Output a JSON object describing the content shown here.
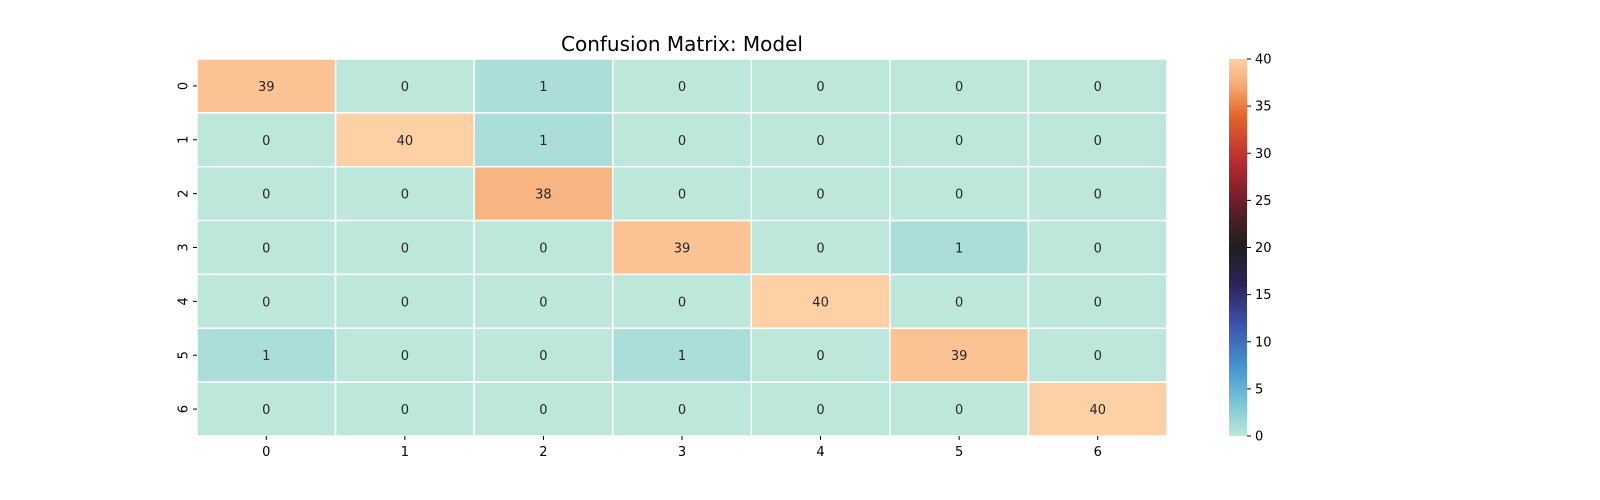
{
  "chart_data": {
    "type": "heatmap",
    "title": "Confusion Matrix: Model",
    "xlabel": "",
    "ylabel": "",
    "row_labels": [
      "0",
      "1",
      "2",
      "3",
      "4",
      "5",
      "6"
    ],
    "col_labels": [
      "0",
      "1",
      "2",
      "3",
      "4",
      "5",
      "6"
    ],
    "values": [
      [
        39,
        0,
        1,
        0,
        0,
        0,
        0
      ],
      [
        0,
        40,
        1,
        0,
        0,
        0,
        0
      ],
      [
        0,
        0,
        38,
        0,
        0,
        0,
        0
      ],
      [
        0,
        0,
        0,
        39,
        0,
        1,
        0
      ],
      [
        0,
        0,
        0,
        0,
        40,
        0,
        0
      ],
      [
        1,
        0,
        0,
        1,
        0,
        39,
        0
      ],
      [
        0,
        0,
        0,
        0,
        0,
        0,
        40
      ]
    ],
    "colorbar": {
      "min": 0,
      "max": 40,
      "ticks": [
        "0",
        "5",
        "10",
        "15",
        "20",
        "25",
        "30",
        "35",
        "40"
      ],
      "colormap": "icefire"
    },
    "annotated": true,
    "cell_separator_color": "#ffffff"
  }
}
